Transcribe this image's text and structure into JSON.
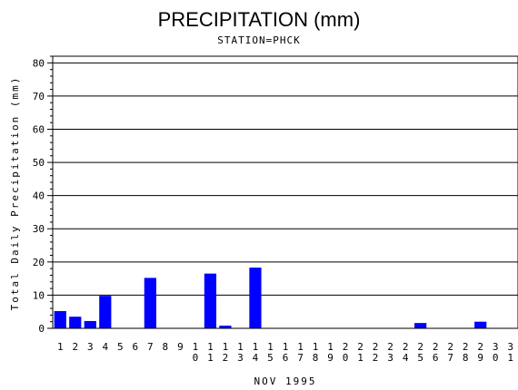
{
  "chart_data": {
    "type": "bar",
    "title": "PRECIPITATION (mm)",
    "subtitle": "STATION=PHCK",
    "xlabel": "NOV 1995",
    "ylabel": "Total Daily Precipitation (mm)",
    "ylim": [
      0,
      82
    ],
    "yticks": [
      0,
      10,
      20,
      30,
      40,
      50,
      60,
      70,
      80
    ],
    "grid": true,
    "bar_color": "#0000ff",
    "categories": [
      "1",
      "2",
      "3",
      "4",
      "5",
      "6",
      "7",
      "8",
      "9",
      "10",
      "11",
      "12",
      "13",
      "14",
      "15",
      "16",
      "17",
      "18",
      "19",
      "20",
      "21",
      "22",
      "23",
      "24",
      "25",
      "26",
      "27",
      "28",
      "29",
      "30",
      "31"
    ],
    "values": [
      5.2,
      3.5,
      2.2,
      9.8,
      0,
      0,
      15.2,
      0,
      0,
      0,
      16.5,
      0.8,
      0,
      18.3,
      0,
      0,
      0,
      0,
      0,
      0,
      0,
      0,
      0,
      0,
      1.6,
      0,
      0,
      0,
      2.0,
      0,
      0
    ]
  }
}
